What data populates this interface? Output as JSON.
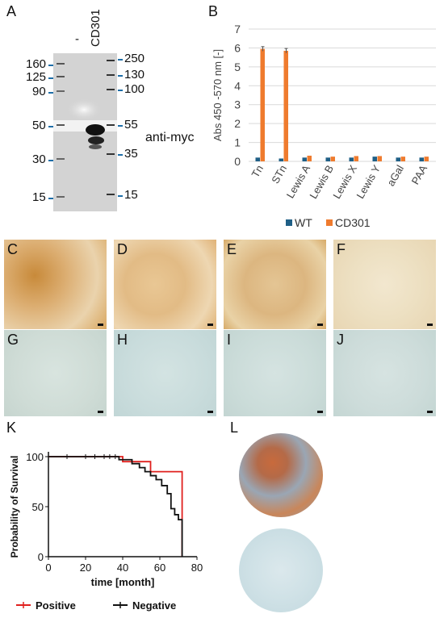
{
  "panels": {
    "A": "A",
    "B": "B",
    "C": "C",
    "D": "D",
    "E": "E",
    "F": "F",
    "G": "G",
    "H": "H",
    "I": "I",
    "J": "J",
    "K": "K",
    "L": "L"
  },
  "blot": {
    "lane_labels": [
      "-",
      "CD301"
    ],
    "left_markers": [
      "160",
      "125",
      "90",
      "50",
      "30",
      "15"
    ],
    "right_markers": [
      "250",
      "130",
      "100",
      "55",
      "35",
      "15"
    ],
    "antibody": "anti-myc"
  },
  "chart_b_data": {
    "type": "bar",
    "ylabel": "Abs 450 -570 nm [-]",
    "ylim": [
      0,
      7
    ],
    "yticks": [
      "0",
      "1",
      "2",
      "3",
      "4",
      "5",
      "6",
      "7"
    ],
    "categories": [
      "Tn",
      "STn",
      "Lewis A",
      "Lewis B",
      "Lewis X",
      "Lewis Y",
      "aGal",
      "PAA"
    ],
    "series": [
      {
        "name": "WT",
        "color": "#1f5f86",
        "values": [
          0.2,
          0.15,
          0.2,
          0.2,
          0.2,
          0.25,
          0.2,
          0.2
        ]
      },
      {
        "name": "CD301",
        "color": "#ef7b2e",
        "values": [
          5.95,
          5.85,
          0.3,
          0.25,
          0.28,
          0.28,
          0.25,
          0.25
        ]
      }
    ],
    "grid": true,
    "legend": "bottom"
  },
  "chart_data": {
    "type": "line",
    "xlabel": "time [month]",
    "ylabel": "Probability of Survival",
    "xlim": [
      0,
      80
    ],
    "ylim": [
      0,
      100
    ],
    "xticks": [
      "0",
      "20",
      "40",
      "60",
      "80"
    ],
    "yticks": [
      "0",
      "50",
      "100"
    ],
    "series": [
      {
        "name": "Positive",
        "color": "#e0201e",
        "x": [
          0,
          40,
          40,
          55,
          55,
          72,
          72
        ],
        "y": [
          100,
          100,
          95,
          95,
          85,
          85,
          0
        ]
      },
      {
        "name": "Negative",
        "color": "#111111",
        "x": [
          0,
          38,
          38,
          45,
          45,
          49,
          49,
          52,
          52,
          55,
          55,
          58,
          58,
          61,
          61,
          64,
          64,
          66,
          66,
          68,
          68,
          70,
          70,
          72,
          72
        ],
        "y": [
          100,
          100,
          97,
          97,
          93,
          93,
          89,
          89,
          85,
          85,
          81,
          81,
          77,
          77,
          71,
          71,
          63,
          63,
          48,
          48,
          42,
          42,
          37,
          37,
          0
        ]
      }
    ],
    "legend": "bottom"
  }
}
